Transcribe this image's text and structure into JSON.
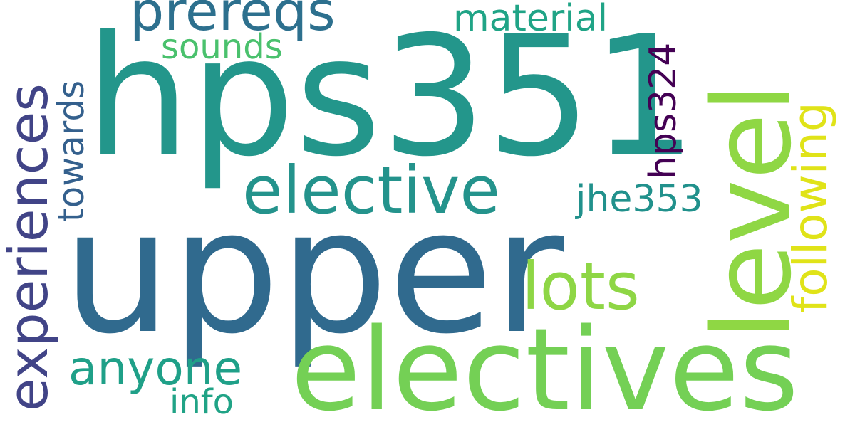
{
  "words": [
    {
      "text": "hps351",
      "color": "#23968b"
    },
    {
      "text": "upper",
      "color": "#306a8e"
    },
    {
      "text": "electives",
      "color": "#74d055"
    },
    {
      "text": "level",
      "color": "#8fd744"
    },
    {
      "text": "elective",
      "color": "#24938c"
    },
    {
      "text": "lots",
      "color": "#8ed645"
    },
    {
      "text": "experiences",
      "color": "#414487"
    },
    {
      "text": "prereqs",
      "color": "#2d708e"
    },
    {
      "text": "following",
      "color": "#e0e318"
    },
    {
      "text": "anyone",
      "color": "#1fa088"
    },
    {
      "text": "material",
      "color": "#20a486"
    },
    {
      "text": "towards",
      "color": "#34608d"
    },
    {
      "text": "jhe353",
      "color": "#21918c"
    },
    {
      "text": "hps324",
      "color": "#440154"
    },
    {
      "text": "sounds",
      "color": "#4ac16d"
    },
    {
      "text": "info",
      "color": "#20a386"
    }
  ]
}
